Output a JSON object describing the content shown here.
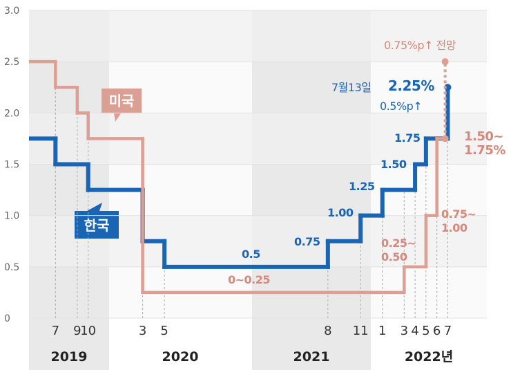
{
  "chart_data": {
    "type": "step",
    "xlim": [
      "2019-04",
      "2022-10"
    ],
    "ylim": [
      0,
      3
    ],
    "yticks": [
      0,
      0.5,
      {
        "value": 1,
        "label": "1.0"
      },
      1.5,
      {
        "value": 2,
        "label": "2.0"
      },
      2.5,
      {
        "value": 3,
        "label": "3.0"
      }
    ],
    "xticks": [
      {
        "value": "2019-07",
        "label": "7"
      },
      {
        "value": "2019-09",
        "label": "9"
      },
      {
        "value": "2019-10",
        "label": "10"
      },
      {
        "value": "2020-03",
        "label": "3"
      },
      {
        "value": "2020-05",
        "label": "5"
      },
      {
        "value": "2021-08",
        "label": "8"
      },
      {
        "value": "2021-11",
        "label": "11"
      },
      {
        "value": "2022-01",
        "label": "1"
      },
      {
        "value": "2022-03",
        "label": "3"
      },
      {
        "value": "2022-04",
        "label": "4"
      },
      {
        "value": "2022-05",
        "label": "5"
      },
      {
        "value": "2022-06",
        "label": "6"
      },
      {
        "value": "2022-07",
        "label": "7"
      }
    ],
    "years": [
      "2019",
      "2020",
      "2021",
      "2022년"
    ],
    "series": [
      {
        "name": "한국",
        "color": "#1a64b4",
        "x": [
          "2019-04",
          "2019-07",
          "2019-10",
          "2020-03",
          "2020-05",
          "2021-08",
          "2021-11",
          "2022-01",
          "2022-04",
          "2022-05",
          "2022-07"
        ],
        "values": [
          1.75,
          1.5,
          1.25,
          0.75,
          0.5,
          0.75,
          1.0,
          1.25,
          1.5,
          1.75,
          2.25
        ],
        "value_labels": [
          null,
          null,
          null,
          null,
          "0.5",
          "0.75",
          "1.00",
          "1.25",
          "1.50",
          "1.75",
          "2.25%"
        ]
      },
      {
        "name": "미국",
        "color": "#dc9f93",
        "x": [
          "2019-04",
          "2019-07",
          "2019-09",
          "2019-10",
          "2020-03",
          "2022-03",
          "2022-05",
          "2022-06"
        ],
        "values": [
          2.5,
          2.25,
          2.0,
          1.75,
          0.25,
          0.5,
          1.0,
          1.75
        ],
        "value_labels": [
          null,
          null,
          null,
          null,
          "0~0.25",
          "0.25~\n0.50",
          "0.75~\n1.00",
          "1.50~\n1.75%"
        ]
      }
    ],
    "korea_date": "7월13일",
    "korea_change": "0.5%p↑",
    "projection": {
      "value": 2.5,
      "label": "0.75%p↑ 전망"
    }
  }
}
